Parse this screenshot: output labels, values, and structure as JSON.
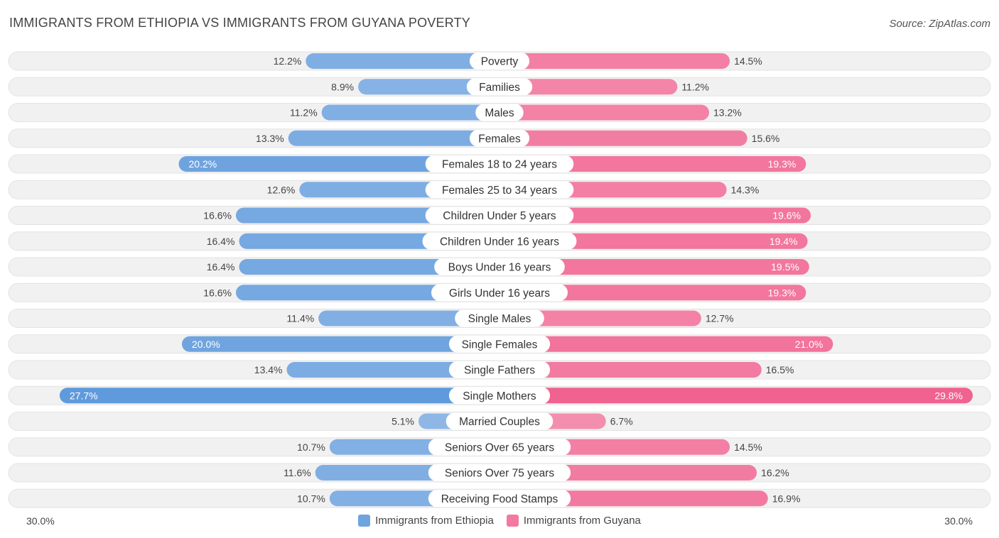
{
  "header": {
    "title": "IMMIGRANTS FROM ETHIOPIA VS IMMIGRANTS FROM GUYANA POVERTY",
    "source": "Source: ZipAtlas.com"
  },
  "legend": {
    "left_label": "Immigrants from Ethiopia",
    "right_label": "Immigrants from Guyana"
  },
  "axis": {
    "left_label": "30.0%",
    "right_label": "30.0%"
  },
  "colors": {
    "left": "#6fa4de",
    "right": "#f27aa0",
    "row_bg": "#f2f2f2"
  },
  "chart_data": {
    "type": "bar",
    "orientation": "horizontal-diverging",
    "title": "IMMIGRANTS FROM ETHIOPIA VS IMMIGRANTS FROM GUYANA POVERTY",
    "xlim": [
      0,
      30
    ],
    "categories": [
      "Poverty",
      "Families",
      "Males",
      "Females",
      "Females 18 to 24 years",
      "Females 25 to 34 years",
      "Children Under 5 years",
      "Children Under 16 years",
      "Boys Under 16 years",
      "Girls Under 16 years",
      "Single Males",
      "Single Females",
      "Single Fathers",
      "Single Mothers",
      "Married Couples",
      "Seniors Over 65 years",
      "Seniors Over 75 years",
      "Receiving Food Stamps"
    ],
    "series": [
      {
        "name": "Immigrants from Ethiopia",
        "values": [
          12.2,
          8.9,
          11.2,
          13.3,
          20.2,
          12.6,
          16.6,
          16.4,
          16.4,
          16.6,
          11.4,
          20.0,
          13.4,
          27.7,
          5.1,
          10.7,
          11.6,
          10.7
        ],
        "labels": [
          "12.2%",
          "8.9%",
          "11.2%",
          "13.3%",
          "20.2%",
          "12.6%",
          "16.6%",
          "16.4%",
          "16.4%",
          "16.6%",
          "11.4%",
          "20.0%",
          "13.4%",
          "27.7%",
          "5.1%",
          "10.7%",
          "11.6%",
          "10.7%"
        ]
      },
      {
        "name": "Immigrants from Guyana",
        "values": [
          14.5,
          11.2,
          13.2,
          15.6,
          19.3,
          14.3,
          19.6,
          19.4,
          19.5,
          19.3,
          12.7,
          21.0,
          16.5,
          29.8,
          6.7,
          14.5,
          16.2,
          16.9
        ],
        "labels": [
          "14.5%",
          "11.2%",
          "13.2%",
          "15.6%",
          "19.3%",
          "14.3%",
          "19.6%",
          "19.4%",
          "19.5%",
          "19.3%",
          "12.7%",
          "21.0%",
          "16.5%",
          "29.8%",
          "6.7%",
          "14.5%",
          "16.2%",
          "16.9%"
        ]
      }
    ]
  }
}
